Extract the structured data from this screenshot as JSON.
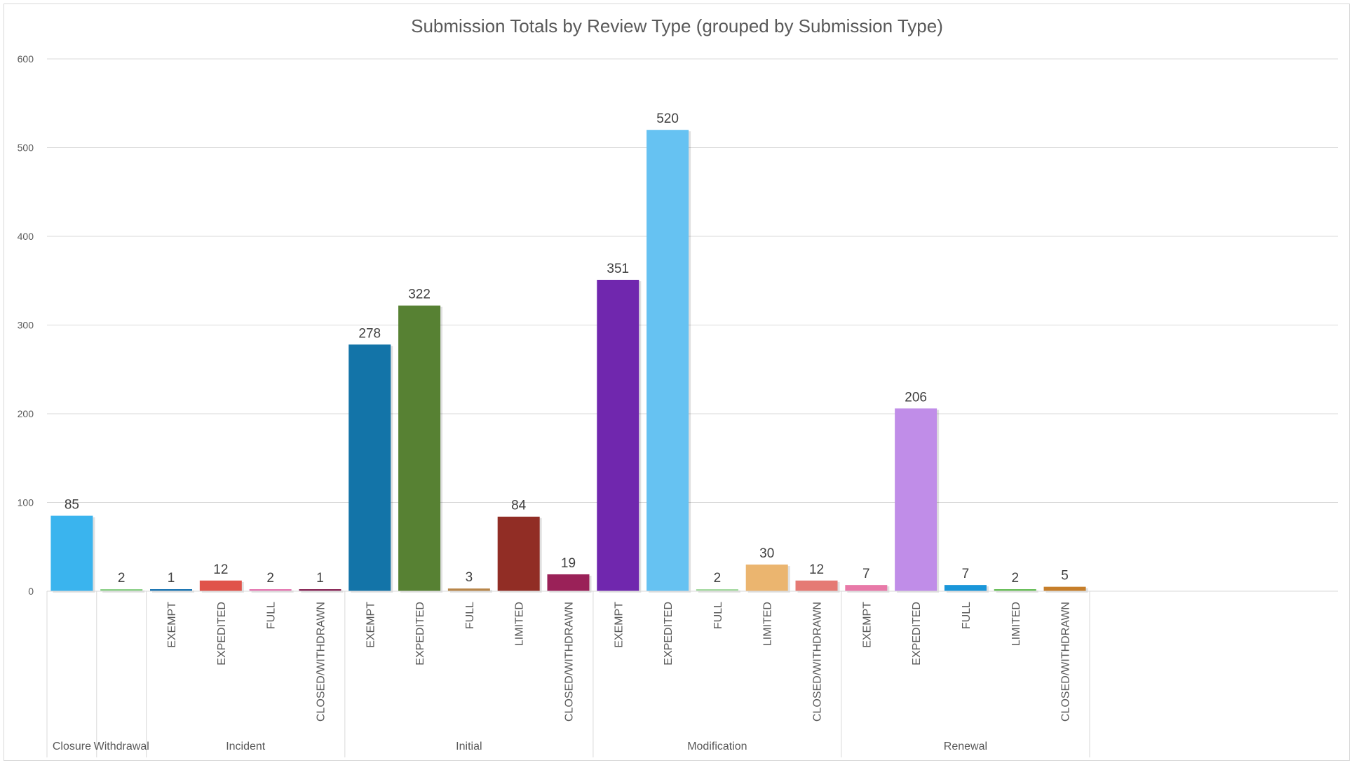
{
  "chart_data": {
    "type": "bar",
    "title": "Submission Totals by Review Type (grouped by Submission Type)",
    "xlabel": "",
    "ylabel": "",
    "ylim": [
      0,
      600
    ],
    "yticks": [
      0,
      100,
      200,
      300,
      400,
      500,
      600
    ],
    "grid": true,
    "legend": "none",
    "groups": [
      {
        "label": "Closure",
        "bars": [
          {
            "category": "",
            "value": 85,
            "color": "#3AB4EE"
          }
        ]
      },
      {
        "label": "Withdrawal",
        "bars": [
          {
            "category": "",
            "value": 2,
            "color": "#8FD18B"
          }
        ]
      },
      {
        "label": "Incident",
        "bars": [
          {
            "category": "EXEMPT",
            "value": 1,
            "color": "#1F77B4"
          },
          {
            "category": "EXPEDITED",
            "value": 12,
            "color": "#E0534A"
          },
          {
            "category": "FULL",
            "value": 2,
            "color": "#E57CB4"
          },
          {
            "category": "CLOSED/WITHDRAWN",
            "value": 1,
            "color": "#8B2C5A"
          }
        ]
      },
      {
        "label": "Initial",
        "bars": [
          {
            "category": "EXEMPT",
            "value": 278,
            "color": "#1374A8"
          },
          {
            "category": "EXPEDITED",
            "value": 322,
            "color": "#578133"
          },
          {
            "category": "FULL",
            "value": 3,
            "color": "#B8864A"
          },
          {
            "category": "LIMITED",
            "value": 84,
            "color": "#912D25"
          },
          {
            "category": "CLOSED/WITHDRAWN",
            "value": 19,
            "color": "#9A2158"
          }
        ]
      },
      {
        "label": "Modification",
        "bars": [
          {
            "category": "EXEMPT",
            "value": 351,
            "color": "#7027AE"
          },
          {
            "category": "EXPEDITED",
            "value": 520,
            "color": "#66C2F2"
          },
          {
            "category": "FULL",
            "value": 2,
            "color": "#A8DBA4"
          },
          {
            "category": "LIMITED",
            "value": 30,
            "color": "#EBB56F"
          },
          {
            "category": "CLOSED/WITHDRAWN",
            "value": 12,
            "color": "#E57A74"
          }
        ]
      },
      {
        "label": "Renewal",
        "bars": [
          {
            "category": "EXEMPT",
            "value": 7,
            "color": "#E879A8"
          },
          {
            "category": "EXPEDITED",
            "value": 206,
            "color": "#C08DE8"
          },
          {
            "category": "FULL",
            "value": 7,
            "color": "#1A96D9"
          },
          {
            "category": "LIMITED",
            "value": 2,
            "color": "#6BBF5C"
          },
          {
            "category": "CLOSED/WITHDRAWN",
            "value": 5,
            "color": "#C67E2A"
          }
        ]
      }
    ]
  }
}
